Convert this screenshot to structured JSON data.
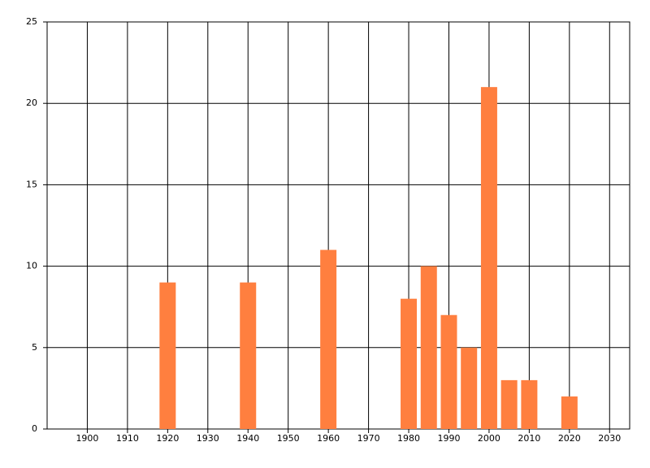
{
  "chart_data": {
    "type": "bar",
    "x": [
      1920,
      1940,
      1960,
      1980,
      1985,
      1990,
      1995,
      2000,
      2005,
      2010,
      2020
    ],
    "values": [
      9,
      9,
      11,
      8,
      10,
      7,
      5,
      21,
      3,
      3,
      2
    ],
    "color": "#ff7f3f",
    "xlim": [
      1890,
      2035
    ],
    "xticks": [
      1900,
      1910,
      1920,
      1930,
      1940,
      1950,
      1960,
      1970,
      1980,
      1990,
      2000,
      2010,
      2020,
      2030
    ],
    "ylim": [
      0,
      25
    ],
    "yticks": [
      0,
      5,
      10,
      15,
      20,
      25
    ],
    "grid": true
  }
}
